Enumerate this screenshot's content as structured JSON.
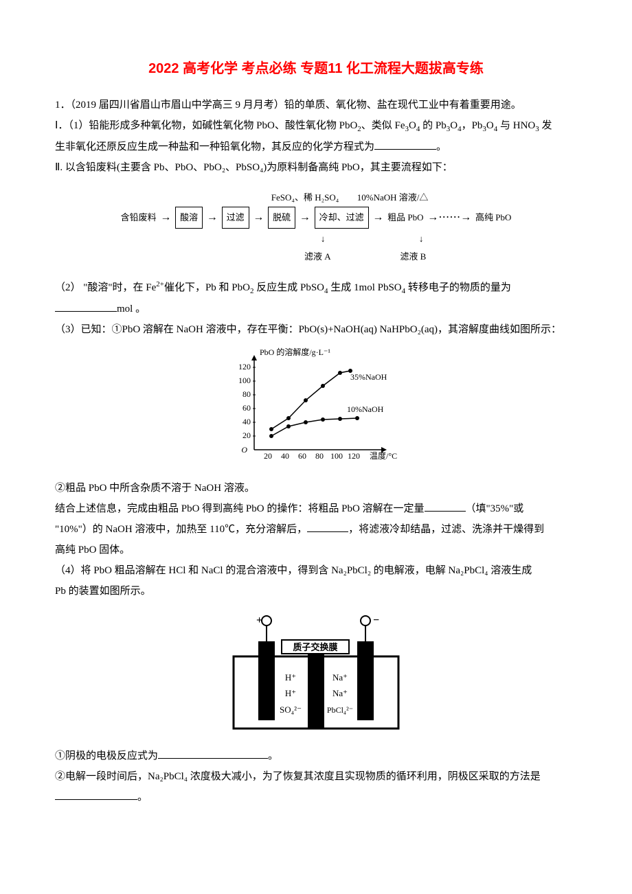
{
  "title": "2022 高考化学 考点必练 专题11 化工流程大题拔高专练",
  "q1_intro": "1．（2019 届四川省眉山市眉山中学高三 9 月月考）铅的单质、氧化物、盐在现代工业中有着重要用途。",
  "q1_I_a": "Ⅰ．（1）铅能形成多种氧化物，如碱性氧化物 PbO、酸性氧化物 PbO",
  "q1_I_b": "、类似 Fe",
  "q1_I_c": "O",
  "q1_I_d": "  的 Pb",
  "q1_I_e": "O",
  "q1_I_f": "，Pb",
  "q1_I_g": "O",
  "q1_I_h": "  与 HNO",
  "q1_I_i": "  发",
  "q1_I_line2": "生非氧化还原反应生成一种盐和一种铅氧化物，其反应的化学方程式为",
  "q1_I_end": "。",
  "q1_II": "Ⅱ. 以含铅废料(主要含 Pb、PbO、PbO₂、PbSO₄)为原料制备高纯 PbO，其主要流程如下：",
  "flow": {
    "top_label_1": "FeSO₄、稀 H₂SO₄",
    "top_label_2": "10%NaOH 溶液/△",
    "in": "含铅废料",
    "box1": "酸溶",
    "box2": "过滤",
    "box3": "脱硫",
    "box4": "冷却、过滤",
    "mid": "粗品 PbO",
    "out": "高纯 PbO",
    "bottom1": "滤液 A",
    "bottom2": "滤液 B"
  },
  "q1_2a": "（2） \"酸溶\"时，在 Fe",
  "q1_2b": "催化下，Pb  和 PbO",
  "q1_2c": " 反应生成 PbSO",
  "q1_2d": " 生成 1mol  PbSO",
  "q1_2e": " 转移电子的物质的量为",
  "q1_2f": "mol 。",
  "q1_3": "（3）已知：①PbO 溶解在 NaOH  溶液中，存在平衡：PbO(s)+NaOH(aq) NaHPbO₂(aq)，其溶解度曲线如图所示：",
  "chart": {
    "y_label": "PbO 的溶解度/g·L⁻¹",
    "x_label": "温度/°C",
    "y_ticks": [
      "20",
      "40",
      "60",
      "80",
      "100",
      "120"
    ],
    "x_ticks": [
      "20",
      "40",
      "60",
      "80",
      "100",
      "120"
    ],
    "series1_label": "35%NaOH",
    "series2_label": "10%NaOH",
    "series1": [
      [
        20,
        30
      ],
      [
        40,
        46
      ],
      [
        60,
        72
      ],
      [
        80,
        93
      ],
      [
        100,
        112
      ],
      [
        112,
        115
      ]
    ],
    "series2": [
      [
        20,
        20
      ],
      [
        40,
        34
      ],
      [
        60,
        40
      ],
      [
        80,
        44
      ],
      [
        100,
        45
      ],
      [
        120,
        46
      ]
    ],
    "line_color": "#000000",
    "marker_color": "#000000",
    "background": "#ffffff"
  },
  "q1_3_note": "②粗品 PbO  中所含杂质不溶于 NaOH  溶液。",
  "q1_3_op1": "结合上述信息，完成由粗品 PbO 得到高纯 PbO  的操作：将粗品 PbO 溶解在一定量",
  "q1_3_op2": "（填\"35%\"或",
  "q1_3_op3": "\"10%\"）的 NaOH  溶液中，加热至 110℃，充分溶解后，",
  "q1_3_op4": "，将滤液冷却结晶，过滤、洗涤并干燥得到",
  "q1_3_op5": "高纯 PbO  固体。",
  "q1_4a": "（4）将 PbO 粗品溶解在 HCl  和 NaCl  的混合溶液中，得到含 Na₂PbCl₂  的电解液，电解 Na₂PbCl₄  溶液生成",
  "q1_4b": "Pb  的装置如图所示。",
  "cell": {
    "plus": "+",
    "minus": "−",
    "membrane": "质子交换膜",
    "left_ions": [
      "H⁺",
      "H⁺",
      "SO₄²⁻"
    ],
    "right_ions": [
      "Na⁺",
      "Na⁺",
      "PbCl₄²⁻"
    ],
    "border_color": "#000000"
  },
  "q1_4_1": "①阴极的电极反应式为",
  "q1_4_1end": "。",
  "q1_4_2": "②电解一段时间后，Na₂PbCl₄ 浓度极大减小，为了恢复其浓度且实现物质的循环利用，阴极区采取的方法是",
  "q1_4_2end": "。"
}
